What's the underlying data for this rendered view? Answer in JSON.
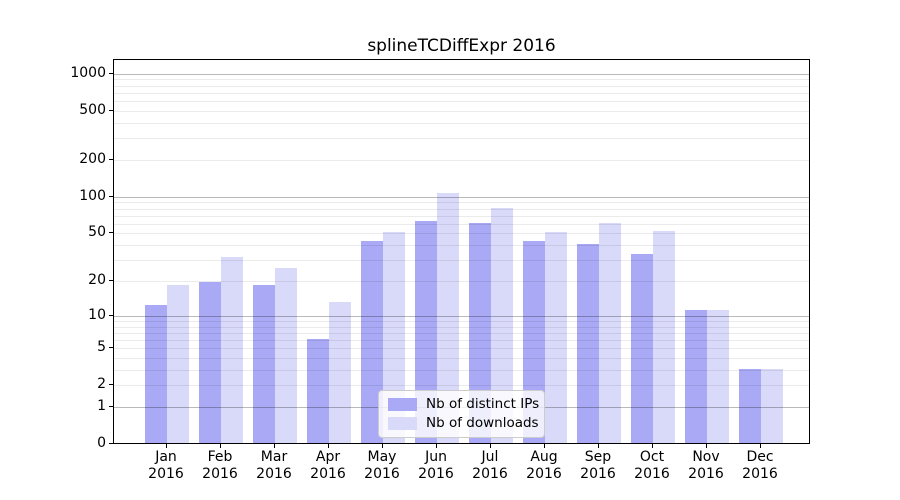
{
  "title": "splineTCDiffExpr 2016",
  "colors": {
    "distinct_ips_bar": "#a9a9f5",
    "downloads_bar": "#d9d9fa",
    "major_gridline": "#b9b9b9",
    "minor_gridline": "#ebebeb",
    "axis": "#000000",
    "legend_border": "#cccccc",
    "background": "#ffffff"
  },
  "legend": {
    "entries": [
      "Nb of distinct IPs",
      "Nb of downloads"
    ]
  },
  "chart_data": {
    "type": "bar",
    "title": "splineTCDiffExpr 2016",
    "xlabel": "",
    "ylabel": "",
    "categories": [
      "Jan 2016",
      "Feb 2016",
      "Mar 2016",
      "Apr 2016",
      "May 2016",
      "Jun 2016",
      "Jul 2016",
      "Aug 2016",
      "Sep 2016",
      "Oct 2016",
      "Nov 2016",
      "Dec 2016"
    ],
    "series": [
      {
        "name": "Nb of distinct IPs",
        "color": "#a9a9f5",
        "values": [
          12,
          19,
          18,
          6,
          42,
          62,
          60,
          42,
          40,
          33,
          11,
          3
        ]
      },
      {
        "name": "Nb of downloads",
        "color": "#d9d9fa",
        "values": [
          18,
          31,
          25,
          13,
          50,
          105,
          79,
          50,
          59,
          51,
          11,
          3
        ]
      }
    ],
    "y_scale": "log10(1+x)",
    "ylim": [
      0,
      1290
    ],
    "y_ticks": [
      0,
      1,
      2,
      5,
      10,
      20,
      50,
      100,
      200,
      500,
      1000
    ],
    "grid_major_values": [
      1,
      10,
      100,
      1000
    ],
    "grid_minor_values": [
      2,
      3,
      4,
      5,
      6,
      7,
      8,
      9,
      20,
      30,
      40,
      50,
      60,
      70,
      80,
      90,
      200,
      300,
      400,
      500,
      600,
      700,
      800,
      900
    ],
    "grid": "on",
    "legend_position": "lower center"
  }
}
